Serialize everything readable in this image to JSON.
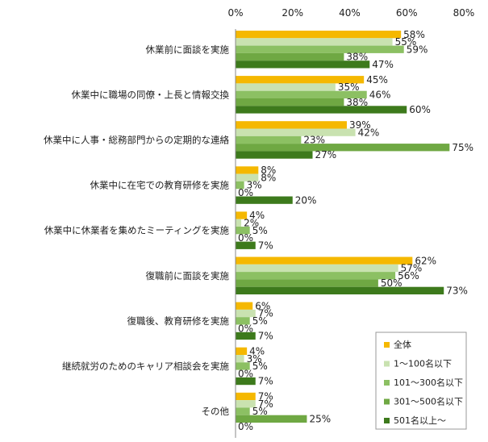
{
  "chart_data": {
    "type": "bar",
    "orientation": "horizontal",
    "xlim": [
      0,
      80
    ],
    "x_ticks": [
      "0%",
      "20%",
      "40%",
      "60%",
      "80%"
    ],
    "grid": false,
    "legend_position": "bottom-right",
    "categories": [
      "休業前に面談を実施",
      "休業中に職場の同僚・上長と情報交換",
      "休業中に人事・総務部門からの定期的な連絡",
      "休業中に在宅での教育研修を実施",
      "休業中に休業者を集めたミーティングを実施",
      "復職前に面談を実施",
      "復職後、教育研修を実施",
      "継続就労のためのキャリア相談会を実施",
      "その他"
    ],
    "series": [
      {
        "name": "全体",
        "color": "#F5B800",
        "values": [
          58,
          45,
          39,
          8,
          4,
          62,
          6,
          4,
          7
        ]
      },
      {
        "name": "1～100名以下",
        "color": "#C9E2B0",
        "values": [
          55,
          35,
          42,
          8,
          2,
          57,
          7,
          3,
          7
        ]
      },
      {
        "name": "101～300名以下",
        "color": "#8CC063",
        "values": [
          59,
          46,
          23,
          3,
          5,
          56,
          5,
          5,
          5
        ]
      },
      {
        "name": "301～500名以下",
        "color": "#6FA843",
        "values": [
          38,
          38,
          75,
          0,
          0,
          50,
          0,
          0,
          25
        ]
      },
      {
        "name": "501名以上～",
        "color": "#3D7A1C",
        "values": [
          47,
          60,
          27,
          20,
          7,
          73,
          7,
          7,
          0
        ]
      }
    ],
    "value_suffix": "%"
  }
}
